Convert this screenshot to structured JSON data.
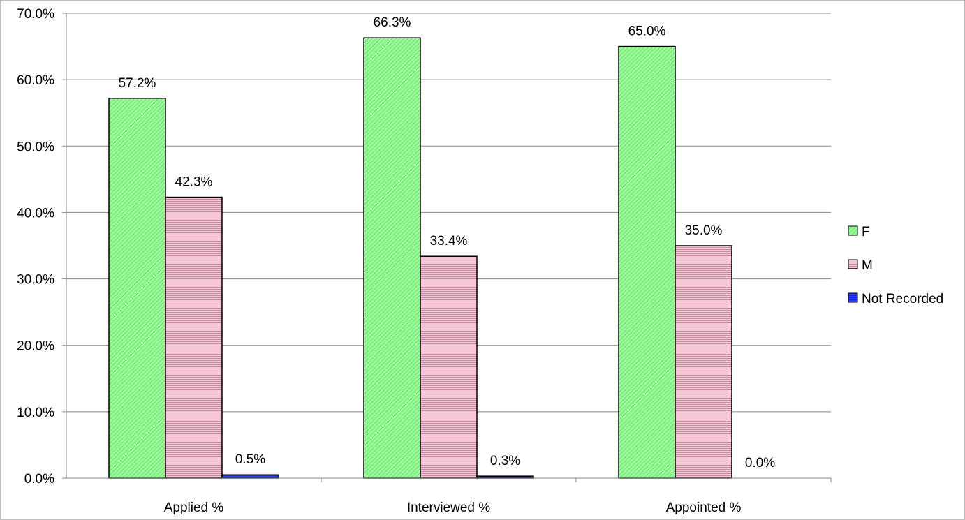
{
  "chart_data": {
    "type": "bar",
    "categories": [
      "Applied %",
      "Interviewed %",
      "Appointed %"
    ],
    "series": [
      {
        "name": "F",
        "values": [
          57.2,
          66.3,
          65.0
        ],
        "labels": [
          "57.2%",
          "66.3%",
          "65.0%"
        ],
        "color": "#99ff99",
        "stripe": "#4caf4c"
      },
      {
        "name": "M",
        "values": [
          42.3,
          33.4,
          35.0
        ],
        "labels": [
          "42.3%",
          "33.4%",
          "35.0%"
        ],
        "color": "#f2c6d4",
        "stripe": "#a05070"
      },
      {
        "name": "Not Recorded",
        "values": [
          0.5,
          0.3,
          0.0
        ],
        "labels": [
          "0.5%",
          "0.3%",
          "0.0%"
        ],
        "color": "#2a3cff",
        "stripe": "#0000aa"
      }
    ],
    "ylim": [
      0,
      70
    ],
    "y_ticks": [
      "0.0%",
      "10.0%",
      "20.0%",
      "30.0%",
      "40.0%",
      "50.0%",
      "60.0%",
      "70.0%"
    ],
    "grid": true,
    "legend_position": "right",
    "xlabel": "",
    "ylabel": "",
    "title": ""
  }
}
